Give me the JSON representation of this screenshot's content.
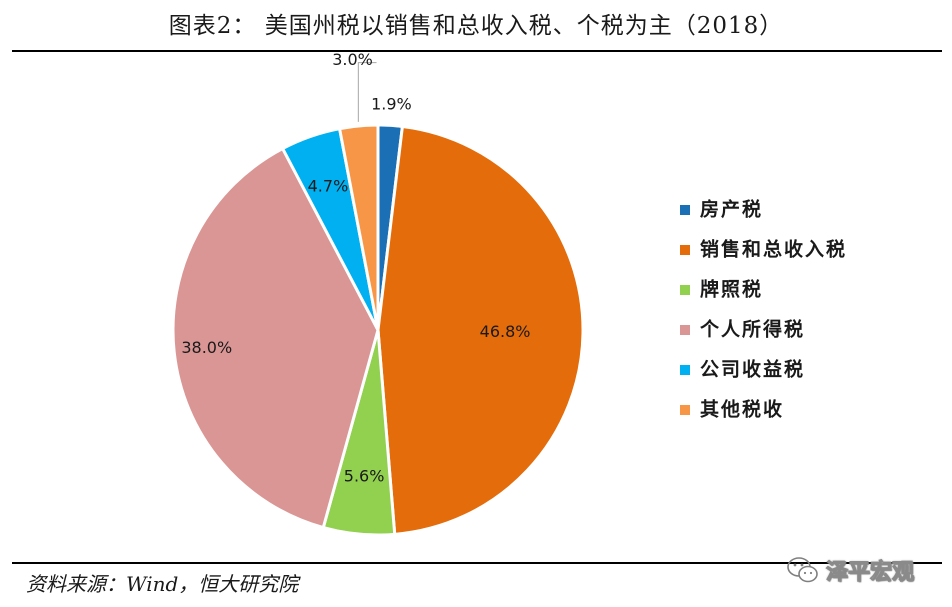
{
  "title": "图表2：  美国州税以销售和总收入税、个税为主（2018）",
  "source": "资料来源：Wind，恒大研究院",
  "watermark": "泽平宏观",
  "chart_data": {
    "type": "pie",
    "title": "图表2：  美国州税以销售和总收入税、个税为主（2018）",
    "legend_position": "right",
    "slices": [
      {
        "name": "房产税",
        "value": 1.9,
        "label": "1.9%",
        "color": "#1a6fb5"
      },
      {
        "name": "销售和总收入税",
        "value": 46.8,
        "label": "46.8%",
        "color": "#e46c0a"
      },
      {
        "name": "牌照税",
        "value": 5.6,
        "label": "5.6%",
        "color": "#92d050"
      },
      {
        "name": "个人所得税",
        "value": 38.0,
        "label": "38.0%",
        "color": "#d99694"
      },
      {
        "name": "公司收益税",
        "value": 4.7,
        "label": "4.7%",
        "color": "#00b0f0"
      },
      {
        "name": "其他税收",
        "value": 3.0,
        "label": "3.0%",
        "color": "#f79646"
      }
    ]
  }
}
